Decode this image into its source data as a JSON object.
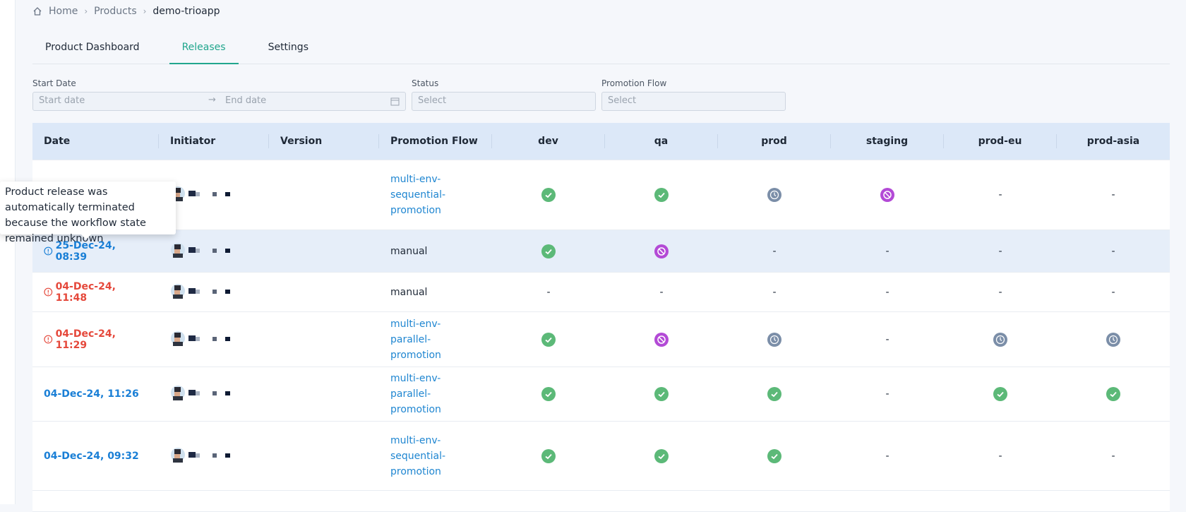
{
  "breadcrumb": [
    "Home",
    "Products",
    "demo-trioapp"
  ],
  "tabs": [
    "Product Dashboard",
    "Releases",
    "Settings"
  ],
  "filters": {
    "start_label": "Start Date",
    "start_placeholder": "Start date",
    "end_placeholder": "End date",
    "status_label": "Status",
    "status_placeholder": "Select",
    "flow_label": "Promotion Flow",
    "flow_placeholder": "Select"
  },
  "table": {
    "columns": [
      "Date",
      "Initiator",
      "Version",
      "Promotion Flow",
      "dev",
      "qa",
      "prod",
      "staging",
      "prod-eu",
      "prod-asia"
    ],
    "rows": [
      {
        "flow": "multi-env-sequential-promotion",
        "stages": [
          null,
          null,
          null,
          null,
          "-",
          "-"
        ]
      },
      {
        "date": "25-Dec-24, 08:39",
        "flow": "manual",
        "stages": [
          null,
          null,
          "-",
          "-",
          "-",
          "-"
        ]
      },
      {
        "date": "04-Dec-24, 11:48",
        "flow": "manual",
        "stages": [
          "-",
          "-",
          "-",
          "-",
          "-",
          "-"
        ]
      },
      {
        "date": "04-Dec-24, 11:29",
        "flow": "multi-env-parallel-promotion",
        "stages": [
          null,
          null,
          null,
          "-",
          null,
          null
        ]
      },
      {
        "date": "04-Dec-24, 11:26",
        "flow": "multi-env-parallel-promotion",
        "stages": [
          null,
          null,
          null,
          "-",
          null,
          null
        ]
      },
      {
        "date": "04-Dec-24, 09:32",
        "flow": "multi-env-sequential-promotion",
        "stages": [
          null,
          null,
          null,
          "-",
          "-",
          "-"
        ]
      }
    ]
  },
  "tooltip": "Product release was automatically terminated because the workflow state remained unknown"
}
